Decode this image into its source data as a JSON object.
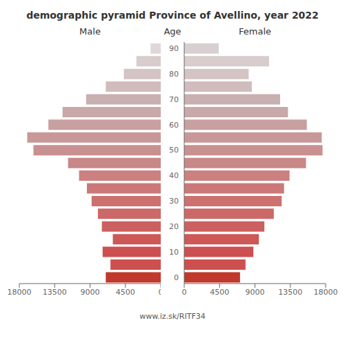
{
  "chart_data": {
    "type": "bar",
    "orientation": "horizontal",
    "title": "demographic pyramid Province of Avellino, year 2022",
    "y_label": "Age",
    "annotations": [
      "www.iz.sk/RITF34"
    ],
    "categories": [
      "0",
      null,
      "10",
      null,
      "20",
      null,
      "30",
      null,
      "40",
      null,
      "50",
      null,
      "60",
      null,
      "70",
      null,
      "80",
      null,
      "90"
    ],
    "series": [
      {
        "name": "Male",
        "values": [
          7000,
          6400,
          7400,
          6100,
          7500,
          8000,
          8800,
          9400,
          10400,
          11800,
          16200,
          17000,
          14300,
          12500,
          9500,
          7000,
          4700,
          3100,
          1300
        ],
        "colors": [
          "#c0392b",
          "#cd4f4f",
          "#cd5050",
          "#cc5858",
          "#cc6060",
          "#cc6868",
          "#cc7070",
          "#cc7878",
          "#cc8080",
          "#c88888",
          "#c89090",
          "#c89898",
          "#c8a0a0",
          "#c8a8a8",
          "#c8b0b0",
          "#d0bcbc",
          "#d4c4c4",
          "#d8cccc",
          "#e0d8d8"
        ]
      },
      {
        "name": "Female",
        "values": [
          7100,
          7800,
          8800,
          9500,
          10200,
          11400,
          12400,
          12700,
          13400,
          15500,
          17600,
          17500,
          15600,
          13200,
          12200,
          8600,
          8200,
          10800,
          4400
        ],
        "colors": [
          "#c0392b",
          "#cd4f4f",
          "#cd5050",
          "#cc5858",
          "#cc6060",
          "#cc6868",
          "#cc7070",
          "#cc7878",
          "#cc8080",
          "#c88888",
          "#c89090",
          "#c89898",
          "#c8a0a0",
          "#c8a8a8",
          "#c8b0b0",
          "#d0bcbc",
          "#d4c4c4",
          "#d8cccc",
          "#d8d0d0"
        ]
      }
    ],
    "xlim": [
      0,
      18000
    ],
    "xticks": [
      0,
      4500,
      9000,
      13500,
      18000
    ],
    "grid": false
  }
}
